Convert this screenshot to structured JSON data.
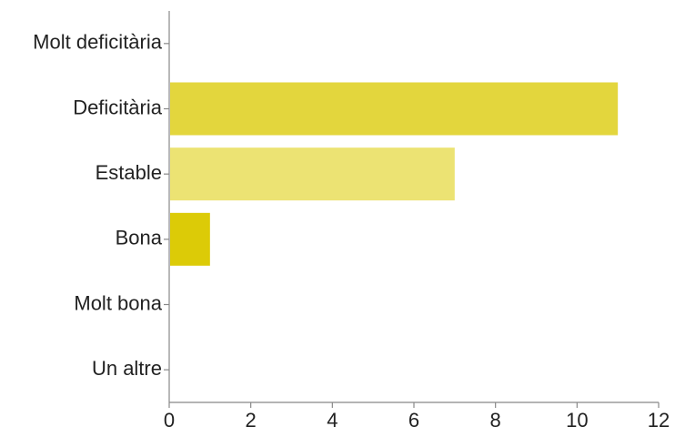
{
  "chart_data": {
    "type": "bar",
    "orientation": "horizontal",
    "categories": [
      "Molt deficitària",
      "Deficitària",
      "Estable",
      "Bona",
      "Molt bona",
      "Un altre"
    ],
    "values": [
      0,
      11,
      7,
      1,
      0,
      0
    ],
    "colors": [
      "#e3d63d",
      "#e3d63d",
      "#ece373",
      "#dccb07",
      "#e3d63d",
      "#e3d63d"
    ],
    "xlim": [
      0,
      12
    ],
    "xticks": [
      0,
      2,
      4,
      6,
      8,
      10,
      12
    ],
    "axis_color": "#888888",
    "grid": false
  }
}
